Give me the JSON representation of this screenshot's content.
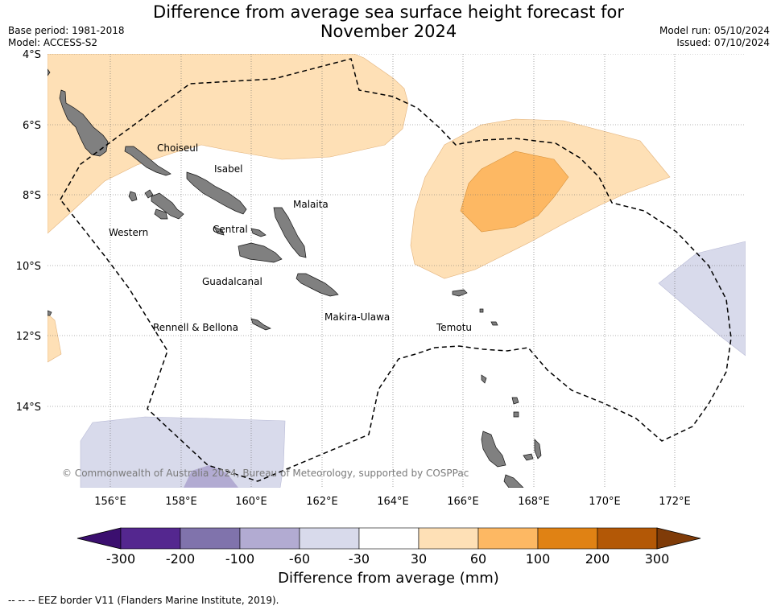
{
  "title": {
    "line1": "Difference from average sea surface height forecast for",
    "line2": "November 2024"
  },
  "meta": {
    "base_period": "Base period: 1981-2018",
    "model": "Model: ACCESS-S2",
    "model_run": "Model run: 05/10/2024",
    "issued": "Issued: 07/10/2024"
  },
  "axes": {
    "lat_labels": [
      "4°S",
      "6°S",
      "8°S",
      "10°S",
      "12°S",
      "14°S"
    ],
    "lon_labels": [
      "156°E",
      "158°E",
      "160°E",
      "162°E",
      "164°E",
      "166°E",
      "168°E",
      "170°E",
      "172°E"
    ]
  },
  "provinces": {
    "choiseul": "Choiseul",
    "isabel": "Isabel",
    "malaita": "Malaita",
    "western": "Western",
    "central": "Central",
    "guadalcanal": "Guadalcanal",
    "makira": "Makira-Ulawa",
    "rennell": "Rennell & Bellona",
    "temotu": "Temotu"
  },
  "copyright": "© Commonwealth of Australia 2024, Bureau of Meteorology, supported by COSPPac",
  "colorbar": {
    "ticks": [
      "-300",
      "-200",
      "-100",
      "-60",
      "-30",
      "30",
      "60",
      "100",
      "200",
      "300"
    ],
    "colors": [
      "#3b0f6f",
      "#54278f",
      "#8073ac",
      "#b2abd2",
      "#d8daeb",
      "#ffffff",
      "#fee0b6",
      "#fdb863",
      "#e08214",
      "#b35806",
      "#7f3b08"
    ],
    "label": "Difference from average (mm)"
  },
  "footnote": "--  --  -- EEZ border V11 (Flanders Marine Institute, 2019)."
}
